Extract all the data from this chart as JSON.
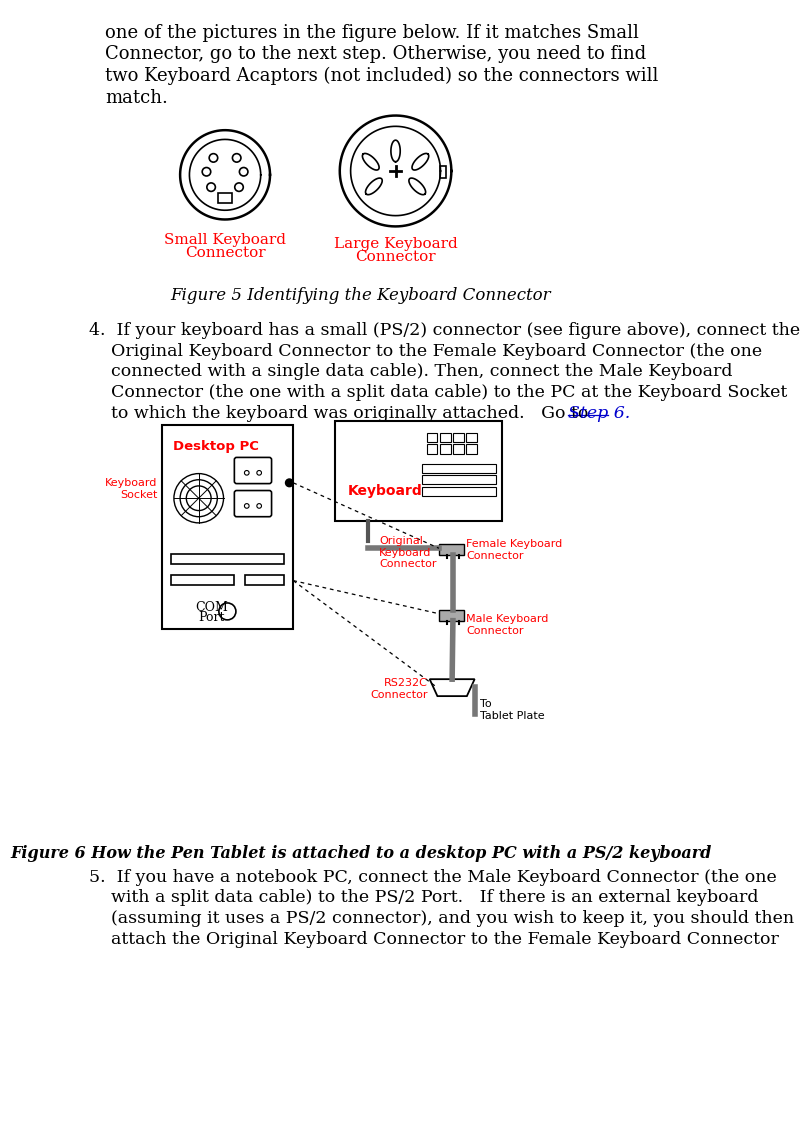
{
  "bg_color": "#ffffff",
  "text_color": "#000000",
  "red_color": "#ff0000",
  "blue_color": "#0000cd",
  "para1_lines": [
    "one of the pictures in the figure below. If it matches Small",
    "Connector, go to the next step. Otherwise, you need to find",
    "two Keyboard Acaptors (not included) so the connectors will",
    "match."
  ],
  "fig5_caption": "Figure 5 Identifying the Keyboard Connector",
  "small_label_line1": "Small Keyboard",
  "small_label_line2": "Connector",
  "large_label_line1": "Large Keyboard",
  "large_label_line2": "Connector",
  "step4_lines": [
    "4.  If your keyboard has a small (PS/2) connector (see figure above), connect the",
    "    Original Keyboard Connector to the Female Keyboard Connector (the one",
    "    connected with a single data cable). Then, connect the Male Keyboard",
    "    Connector (the one with a split data cable) to the PC at the Keyboard Socket",
    "    to which the keyboard was originally attached.   Go to "
  ],
  "step4_link": "Step 6.",
  "fig6_caption": "Figure 6 How the Pen Tablet is attached to a desktop PC with a PS/2 keyboard",
  "step5_lines": [
    "5.  If you have a notebook PC, connect the Male Keyboard Connector (the one",
    "    with a split data cable) to the PS/2 Port.   If there is an external keyboard",
    "    (assuming it uses a PS/2 connector), and you wish to keep it, you should then",
    "    attach the Original Keyboard Connector to the Female Keyboard Connector"
  ]
}
